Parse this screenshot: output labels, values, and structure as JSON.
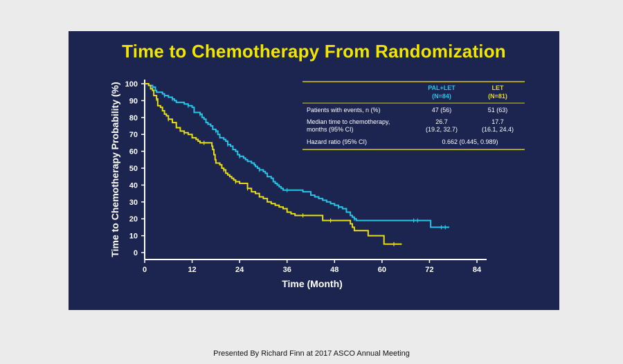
{
  "title": "Time to Chemotherapy From Randomization",
  "footer": "Presented By Richard Finn at 2017 ASCO Annual Meeting",
  "colors": {
    "background": "#1b2550",
    "title": "#f2e600",
    "pal_let": "#27c5e6",
    "let": "#e8de14",
    "axis": "#ffffff",
    "table_rule": "#d8d200"
  },
  "table": {
    "headers": [
      {
        "line1": "PAL+LET",
        "line2": "(N=84)"
      },
      {
        "line1": "LET",
        "line2": "(N=81)"
      }
    ],
    "rows": [
      {
        "label1": "Patients with events, n (%)",
        "label2": "",
        "pal_let_1": "47 (56)",
        "pal_let_2": "",
        "let_1": "51 (63)",
        "let_2": ""
      },
      {
        "label1": "Median time to chemotherapy,",
        "label2": "months (95% CI)",
        "pal_let_1": "26.7",
        "pal_let_2": "(19.2, 32.7)",
        "let_1": "17.7",
        "let_2": "(16.1, 24.4)"
      }
    ],
    "hazard_row": {
      "label": "Hazard ratio (95% CI)",
      "value": "0.662 (0.445, 0.989)"
    }
  },
  "chart_data": {
    "type": "line",
    "xlabel": "Time (Month)",
    "ylabel": "Time to Chemotherapy Probability (%)",
    "xlim": [
      0,
      84
    ],
    "ylim": [
      0,
      100
    ],
    "x_ticks": [
      "0",
      "12",
      "24",
      "36",
      "48",
      "60",
      "72",
      "84"
    ],
    "y_ticks": [
      "0",
      "10",
      "20",
      "30",
      "40",
      "50",
      "60",
      "70",
      "80",
      "90",
      "100"
    ],
    "grid": false,
    "series": [
      {
        "name": "PAL+LET",
        "color": "#27c5e6",
        "step": true,
        "points": [
          [
            0,
            100
          ],
          [
            1,
            99
          ],
          [
            2,
            98
          ],
          [
            2.7,
            96
          ],
          [
            3,
            95
          ],
          [
            4.5,
            94
          ],
          [
            5,
            93
          ],
          [
            6,
            92
          ],
          [
            7,
            91
          ],
          [
            7.5,
            90
          ],
          [
            8,
            89
          ],
          [
            10,
            88
          ],
          [
            11,
            87
          ],
          [
            12,
            86
          ],
          [
            12.5,
            83
          ],
          [
            14,
            82
          ],
          [
            14.5,
            80
          ],
          [
            15,
            79
          ],
          [
            15.5,
            77
          ],
          [
            16,
            76
          ],
          [
            16.7,
            75
          ],
          [
            17.2,
            73
          ],
          [
            18,
            72
          ],
          [
            18.5,
            70
          ],
          [
            19,
            68
          ],
          [
            20,
            67
          ],
          [
            20.5,
            66
          ],
          [
            21,
            64
          ],
          [
            21.7,
            63
          ],
          [
            22.3,
            61
          ],
          [
            23,
            60
          ],
          [
            23.5,
            58
          ],
          [
            24,
            57
          ],
          [
            25,
            56
          ],
          [
            25.5,
            55
          ],
          [
            26,
            54
          ],
          [
            27,
            53
          ],
          [
            27.7,
            52
          ],
          [
            28,
            51
          ],
          [
            28.5,
            50
          ],
          [
            29,
            49
          ],
          [
            30,
            48
          ],
          [
            30.5,
            47
          ],
          [
            31,
            45
          ],
          [
            32,
            44
          ],
          [
            32.5,
            42
          ],
          [
            33,
            41
          ],
          [
            33.5,
            40
          ],
          [
            34,
            39
          ],
          [
            34.5,
            38
          ],
          [
            35,
            37
          ],
          [
            38,
            37
          ],
          [
            40,
            36
          ],
          [
            42,
            34
          ],
          [
            43,
            33
          ],
          [
            44,
            32
          ],
          [
            45,
            31
          ],
          [
            46,
            30
          ],
          [
            47,
            29
          ],
          [
            48,
            28
          ],
          [
            49,
            27
          ],
          [
            50,
            26
          ],
          [
            51,
            24
          ],
          [
            52,
            22
          ],
          [
            52.5,
            21
          ],
          [
            53,
            20
          ],
          [
            53.5,
            19
          ],
          [
            72,
            19
          ],
          [
            72.3,
            15
          ],
          [
            77,
            15
          ]
        ],
        "censor_x": [
          2,
          5,
          7,
          11,
          14,
          18,
          21,
          24,
          29,
          36,
          49,
          53,
          68,
          69,
          75,
          76
        ]
      },
      {
        "name": "LET",
        "color": "#e8de14",
        "step": true,
        "points": [
          [
            0,
            100
          ],
          [
            1,
            99
          ],
          [
            1.5,
            97
          ],
          [
            2,
            96
          ],
          [
            2.3,
            93
          ],
          [
            3,
            91
          ],
          [
            3.3,
            87
          ],
          [
            4,
            86
          ],
          [
            4.5,
            84
          ],
          [
            5,
            82
          ],
          [
            5.5,
            81
          ],
          [
            6,
            79
          ],
          [
            7,
            77
          ],
          [
            8,
            74
          ],
          [
            9,
            72
          ],
          [
            10,
            71
          ],
          [
            11,
            70
          ],
          [
            12,
            68
          ],
          [
            13,
            67
          ],
          [
            13.5,
            66
          ],
          [
            14,
            65
          ],
          [
            16,
            65
          ],
          [
            17,
            63
          ],
          [
            17.2,
            61
          ],
          [
            17.5,
            58
          ],
          [
            17.8,
            55
          ],
          [
            18,
            53
          ],
          [
            19,
            52
          ],
          [
            19.5,
            50
          ],
          [
            20,
            49
          ],
          [
            20.5,
            47
          ],
          [
            21,
            46
          ],
          [
            21.5,
            45
          ],
          [
            22,
            44
          ],
          [
            22.5,
            43
          ],
          [
            23,
            42
          ],
          [
            24,
            41
          ],
          [
            26,
            38
          ],
          [
            27,
            36
          ],
          [
            28,
            35
          ],
          [
            29,
            33
          ],
          [
            30,
            32
          ],
          [
            31,
            30
          ],
          [
            32,
            29
          ],
          [
            33,
            28
          ],
          [
            34,
            27
          ],
          [
            35,
            26
          ],
          [
            36,
            24
          ],
          [
            37,
            23
          ],
          [
            38,
            22
          ],
          [
            41,
            22
          ],
          [
            43,
            22
          ],
          [
            44,
            22
          ],
          [
            45,
            19
          ],
          [
            51,
            19
          ],
          [
            52,
            17
          ],
          [
            52.5,
            15
          ],
          [
            53,
            13
          ],
          [
            56,
            13
          ],
          [
            56.5,
            10
          ],
          [
            60,
            10
          ],
          [
            60.5,
            5
          ],
          [
            65,
            5
          ]
        ],
        "censor_x": [
          3,
          6,
          10,
          15,
          20,
          23,
          26,
          40,
          47,
          63
        ]
      }
    ]
  }
}
